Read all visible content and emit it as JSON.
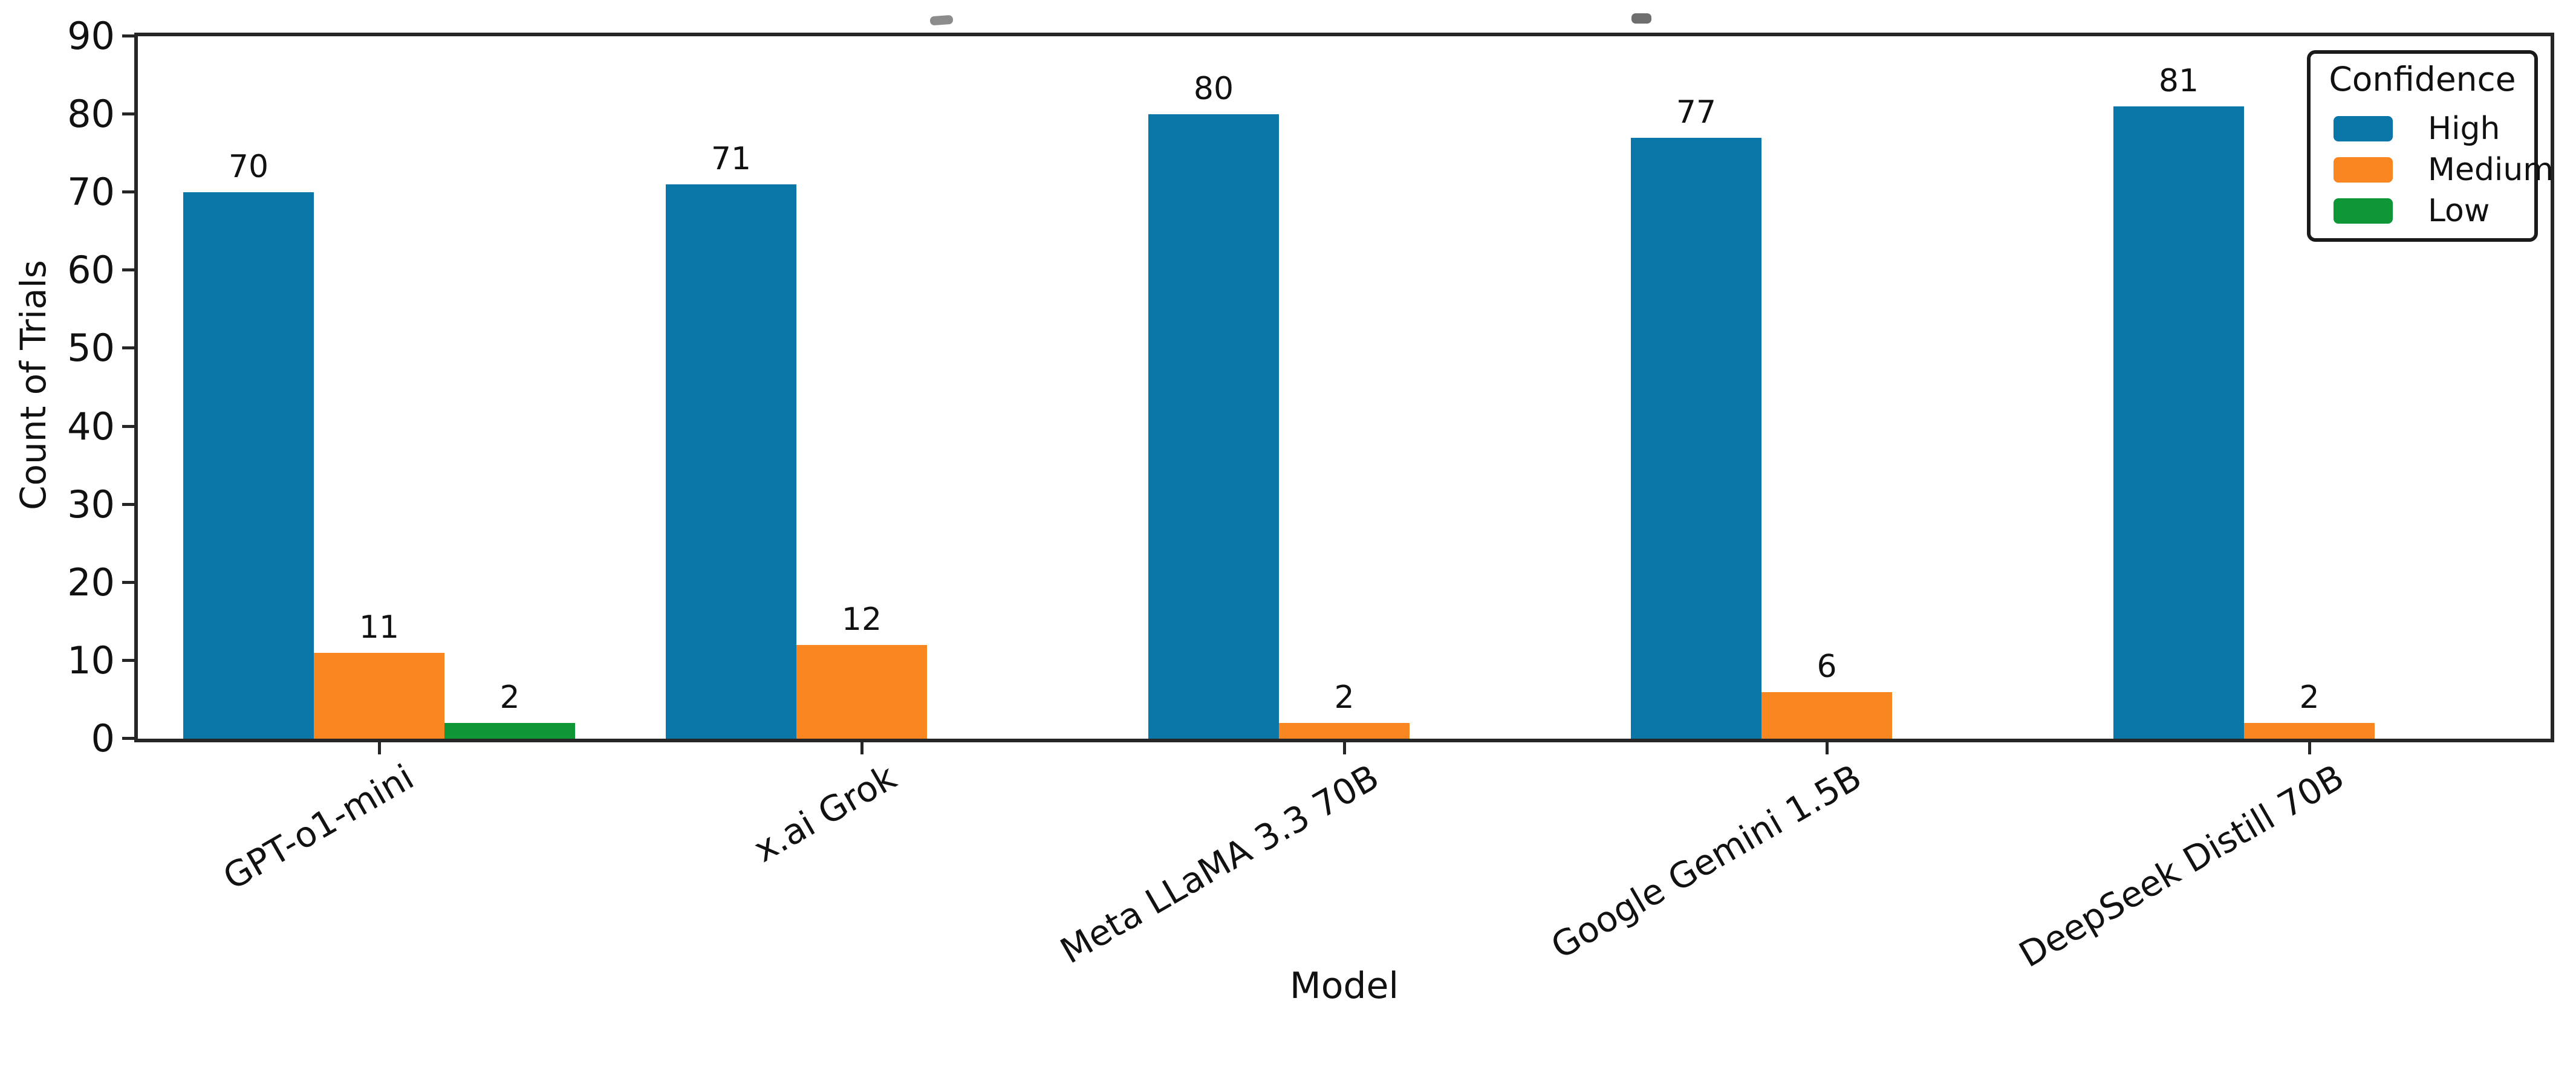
{
  "chart_data": {
    "type": "bar",
    "title": "",
    "xlabel": "Model",
    "ylabel": "Count of Trials",
    "ylim": [
      0,
      90
    ],
    "yticks": [
      0,
      10,
      20,
      30,
      40,
      50,
      60,
      70,
      80,
      90
    ],
    "grid": false,
    "categories": [
      "GPT-o1-mini",
      "x.ai Grok",
      "Meta LLaMA 3.3 70B",
      "Google Gemini 1.5B",
      "DeepSeek Distill 70B"
    ],
    "series": [
      {
        "name": "High",
        "color": "#0b76a8",
        "values": [
          70,
          71,
          80,
          77,
          81
        ]
      },
      {
        "name": "Medium",
        "color": "#fa8622",
        "values": [
          11,
          12,
          2,
          6,
          2
        ]
      },
      {
        "name": "Low",
        "color": "#0f9636",
        "values": [
          2,
          0,
          0,
          0,
          0
        ]
      }
    ],
    "bar_value_labels_shown": true,
    "legend": {
      "title": "Confidence",
      "position": "upper right",
      "entries": [
        "High",
        "Medium",
        "Low"
      ]
    },
    "axis_color": "#262626",
    "text_color": "#111111"
  }
}
